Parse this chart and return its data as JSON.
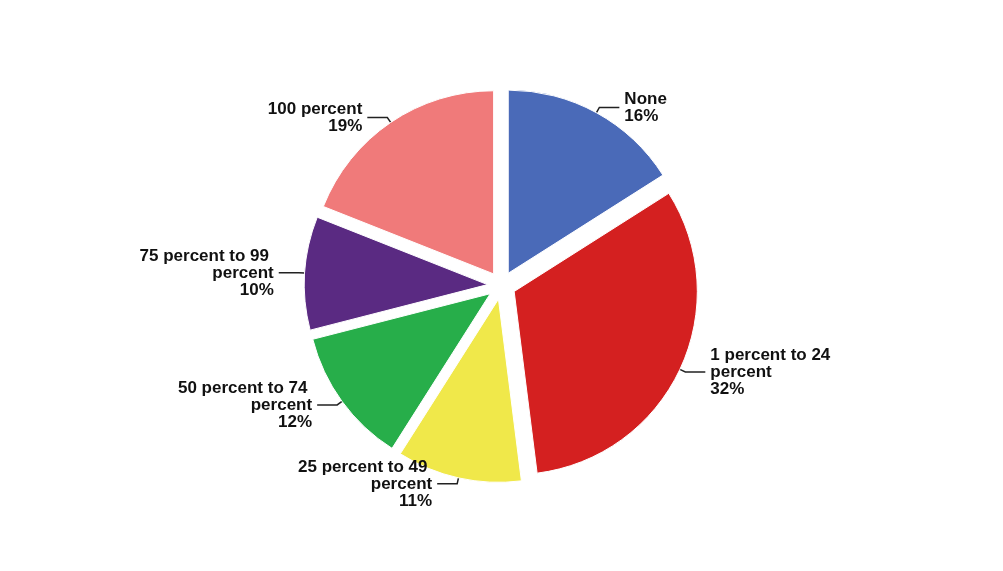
{
  "chart_data": {
    "type": "pie",
    "categories": [
      "None",
      "1 percent to 24 percent",
      "25 percent to 49 percent",
      "50 percent to 74 percent",
      "75 percent to 99 percent",
      "100 percent"
    ],
    "values": [
      16,
      32,
      11,
      12,
      10,
      19
    ],
    "value_labels": [
      "16%",
      "32%",
      "11%",
      "12%",
      "10%",
      "19%"
    ],
    "colors": [
      "#4a6ab8",
      "#d42020",
      "#f0e84a",
      "#27ae4a",
      "#5a2a82",
      "#f07a7a"
    ],
    "legend": false
  }
}
